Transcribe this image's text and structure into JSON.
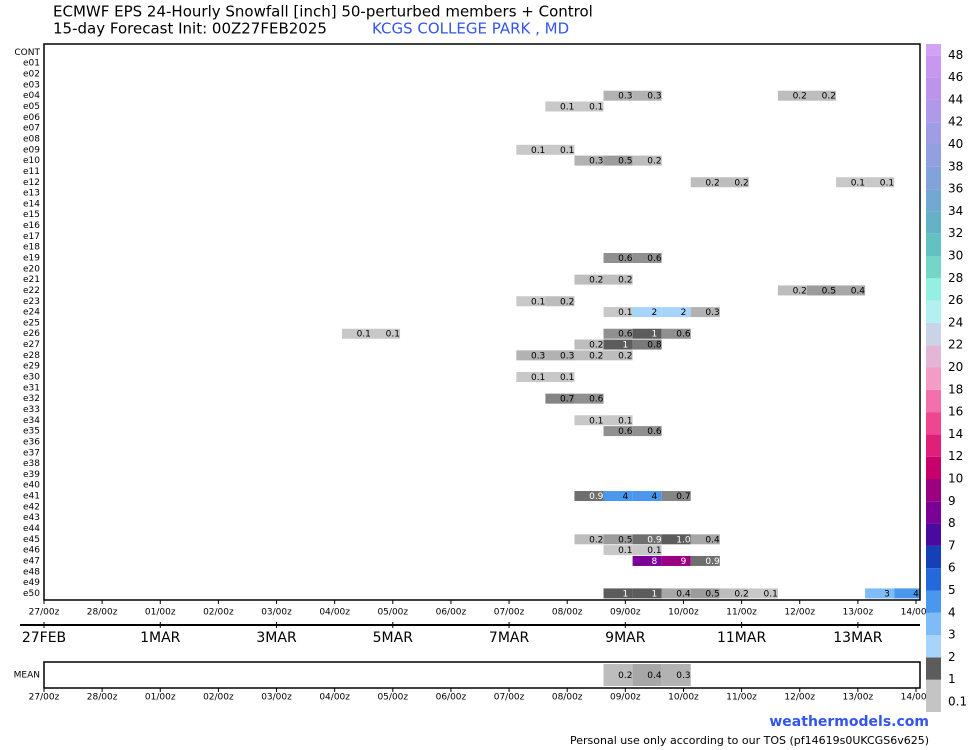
{
  "chart_data": {
    "type": "heatmap",
    "title": "ECMWF EPS 24-Hourly Snowfall [inch]  50-perturbed members + Control",
    "subtitle": "15-day Forecast Init: 00Z27FEB2025",
    "location": "KCGS COLLEGE PARK   , MD",
    "source": "weathermodels.com",
    "footnote": "Personal use only according to our TOS (pf14619s0UKCGS6v625)",
    "mean_label": "MEAN",
    "xlim": [
      0,
      360
    ],
    "xticks": [
      {
        "value": 0,
        "label": "27/00z"
      },
      {
        "value": 24,
        "label": "28/00z"
      },
      {
        "value": 48,
        "label": "01/00z"
      },
      {
        "value": 72,
        "label": "02/00z"
      },
      {
        "value": 96,
        "label": "03/00z"
      },
      {
        "value": 120,
        "label": "04/00z"
      },
      {
        "value": 144,
        "label": "05/00z"
      },
      {
        "value": 168,
        "label": "06/00z"
      },
      {
        "value": 192,
        "label": "07/00z"
      },
      {
        "value": 216,
        "label": "08/00z"
      },
      {
        "value": 240,
        "label": "09/00z"
      },
      {
        "value": 264,
        "label": "10/00z"
      },
      {
        "value": 288,
        "label": "11/00z"
      },
      {
        "value": 312,
        "label": "12/00z"
      },
      {
        "value": 336,
        "label": "13/00z"
      },
      {
        "value": 360,
        "label": "14/00z"
      }
    ],
    "date_labels": [
      {
        "value": 0,
        "label": "27FEB"
      },
      {
        "value": 48,
        "label": "1MAR"
      },
      {
        "value": 96,
        "label": "3MAR"
      },
      {
        "value": 144,
        "label": "5MAR"
      },
      {
        "value": 192,
        "label": "7MAR"
      },
      {
        "value": 240,
        "label": "9MAR"
      },
      {
        "value": 288,
        "label": "11MAR"
      },
      {
        "value": 336,
        "label": "13MAR"
      }
    ],
    "colorscale": [
      {
        "value": 0.1,
        "color": "#c4c4c4"
      },
      {
        "value": 1,
        "color": "#5c5c5c"
      },
      {
        "value": 2,
        "color": "#a6d4fa"
      },
      {
        "value": 3,
        "color": "#7fbcf7"
      },
      {
        "value": 4,
        "color": "#4a98ee"
      },
      {
        "value": 5,
        "color": "#2468dc"
      },
      {
        "value": 6,
        "color": "#1440b8"
      },
      {
        "value": 7,
        "color": "#4a0aa0"
      },
      {
        "value": 8,
        "color": "#7a0096"
      },
      {
        "value": 9,
        "color": "#9a0080"
      },
      {
        "value": 10,
        "color": "#c8006c"
      },
      {
        "value": 12,
        "color": "#e02078"
      },
      {
        "value": 14,
        "color": "#ee4690"
      },
      {
        "value": 16,
        "color": "#f270ac"
      },
      {
        "value": 18,
        "color": "#f49cc6"
      },
      {
        "value": 20,
        "color": "#e4b6d6"
      },
      {
        "value": 22,
        "color": "#cad4e8"
      },
      {
        "value": 24,
        "color": "#b4f0f2"
      },
      {
        "value": 26,
        "color": "#94f0e2"
      },
      {
        "value": 28,
        "color": "#74d6c8"
      },
      {
        "value": 30,
        "color": "#62c2c2"
      },
      {
        "value": 32,
        "color": "#64b2c8"
      },
      {
        "value": 34,
        "color": "#72a8d2"
      },
      {
        "value": 36,
        "color": "#82a2da"
      },
      {
        "value": 38,
        "color": "#90a0e0"
      },
      {
        "value": 40,
        "color": "#a09ce6"
      },
      {
        "value": 42,
        "color": "#b098ea"
      },
      {
        "value": 44,
        "color": "#bc94ec"
      },
      {
        "value": 46,
        "color": "#c898f0"
      },
      {
        "value": 48,
        "color": "#d2a2f6"
      }
    ],
    "rows": [
      {
        "name": "CONT",
        "cells": []
      },
      {
        "name": "e01",
        "cells": []
      },
      {
        "name": "e02",
        "cells": []
      },
      {
        "name": "e03",
        "cells": []
      },
      {
        "name": "e04",
        "cells": [
          {
            "t": 240,
            "v": 0.3
          },
          {
            "t": 252,
            "v": 0.3
          },
          {
            "t": 312,
            "v": 0.2
          },
          {
            "t": 324,
            "v": 0.2
          }
        ]
      },
      {
        "name": "e05",
        "cells": [
          {
            "t": 216,
            "v": 0.1
          },
          {
            "t": 228,
            "v": 0.1
          }
        ]
      },
      {
        "name": "e06",
        "cells": []
      },
      {
        "name": "e07",
        "cells": []
      },
      {
        "name": "e08",
        "cells": []
      },
      {
        "name": "e09",
        "cells": [
          {
            "t": 204,
            "v": 0.1
          },
          {
            "t": 216,
            "v": 0.1
          }
        ]
      },
      {
        "name": "e10",
        "cells": [
          {
            "t": 228,
            "v": 0.3
          },
          {
            "t": 240,
            "v": 0.5
          },
          {
            "t": 252,
            "v": 0.2
          }
        ]
      },
      {
        "name": "e11",
        "cells": []
      },
      {
        "name": "e12",
        "cells": [
          {
            "t": 276,
            "v": 0.2
          },
          {
            "t": 288,
            "v": 0.2
          },
          {
            "t": 336,
            "v": 0.1
          },
          {
            "t": 348,
            "v": 0.1
          }
        ]
      },
      {
        "name": "e13",
        "cells": []
      },
      {
        "name": "e14",
        "cells": []
      },
      {
        "name": "e15",
        "cells": []
      },
      {
        "name": "e16",
        "cells": []
      },
      {
        "name": "e17",
        "cells": []
      },
      {
        "name": "e18",
        "cells": []
      },
      {
        "name": "e19",
        "cells": [
          {
            "t": 240,
            "v": 0.6
          },
          {
            "t": 252,
            "v": 0.6
          }
        ]
      },
      {
        "name": "e20",
        "cells": []
      },
      {
        "name": "e21",
        "cells": [
          {
            "t": 228,
            "v": 0.2
          },
          {
            "t": 240,
            "v": 0.2
          }
        ]
      },
      {
        "name": "e22",
        "cells": [
          {
            "t": 312,
            "v": 0.2
          },
          {
            "t": 324,
            "v": 0.5
          },
          {
            "t": 336,
            "v": 0.4
          }
        ]
      },
      {
        "name": "e23",
        "cells": [
          {
            "t": 204,
            "v": 0.1
          },
          {
            "t": 216,
            "v": 0.2
          }
        ]
      },
      {
        "name": "e24",
        "cells": [
          {
            "t": 240,
            "v": 0.1
          },
          {
            "t": 252,
            "v": 2
          },
          {
            "t": 264,
            "v": 2
          },
          {
            "t": 276,
            "v": 0.3
          }
        ]
      },
      {
        "name": "e25",
        "cells": []
      },
      {
        "name": "e26",
        "cells": [
          {
            "t": 132,
            "v": 0.1
          },
          {
            "t": 144,
            "v": 0.1
          },
          {
            "t": 240,
            "v": 0.6
          },
          {
            "t": 252,
            "v": 1
          },
          {
            "t": 264,
            "v": 0.6
          }
        ]
      },
      {
        "name": "e27",
        "cells": [
          {
            "t": 228,
            "v": 0.2
          },
          {
            "t": 240,
            "v": 1
          },
          {
            "t": 252,
            "v": 0.8
          }
        ]
      },
      {
        "name": "e28",
        "cells": [
          {
            "t": 204,
            "v": 0.3
          },
          {
            "t": 216,
            "v": 0.3
          },
          {
            "t": 228,
            "v": 0.2
          },
          {
            "t": 240,
            "v": 0.2
          }
        ]
      },
      {
        "name": "e29",
        "cells": []
      },
      {
        "name": "e30",
        "cells": [
          {
            "t": 204,
            "v": 0.1
          },
          {
            "t": 216,
            "v": 0.1
          }
        ]
      },
      {
        "name": "e31",
        "cells": []
      },
      {
        "name": "e32",
        "cells": [
          {
            "t": 216,
            "v": 0.7
          },
          {
            "t": 228,
            "v": 0.6
          }
        ]
      },
      {
        "name": "e33",
        "cells": []
      },
      {
        "name": "e34",
        "cells": [
          {
            "t": 228,
            "v": 0.1
          },
          {
            "t": 240,
            "v": 0.1
          }
        ]
      },
      {
        "name": "e35",
        "cells": [
          {
            "t": 240,
            "v": 0.6
          },
          {
            "t": 252,
            "v": 0.6
          }
        ]
      },
      {
        "name": "e36",
        "cells": []
      },
      {
        "name": "e37",
        "cells": []
      },
      {
        "name": "e38",
        "cells": []
      },
      {
        "name": "e39",
        "cells": []
      },
      {
        "name": "e40",
        "cells": []
      },
      {
        "name": "e41",
        "cells": [
          {
            "t": 228,
            "v": 0.9
          },
          {
            "t": 240,
            "v": 4
          },
          {
            "t": 252,
            "v": 4
          },
          {
            "t": 264,
            "v": 0.7
          }
        ]
      },
      {
        "name": "e42",
        "cells": []
      },
      {
        "name": "e43",
        "cells": []
      },
      {
        "name": "e44",
        "cells": []
      },
      {
        "name": "e45",
        "cells": [
          {
            "t": 228,
            "v": 0.2
          },
          {
            "t": 240,
            "v": 0.5
          },
          {
            "t": 252,
            "v": 0.9
          },
          {
            "t": 264,
            "v": 1,
            "label": "1.0"
          },
          {
            "t": 276,
            "v": 0.4
          }
        ]
      },
      {
        "name": "e46",
        "cells": [
          {
            "t": 240,
            "v": 0.1
          },
          {
            "t": 252,
            "v": 0.1
          }
        ]
      },
      {
        "name": "e47",
        "cells": [
          {
            "t": 252,
            "v": 8
          },
          {
            "t": 264,
            "v": 9
          },
          {
            "t": 276,
            "v": 0.9
          }
        ]
      },
      {
        "name": "e48",
        "cells": []
      },
      {
        "name": "e49",
        "cells": []
      },
      {
        "name": "e50",
        "cells": [
          {
            "t": 240,
            "v": 1
          },
          {
            "t": 252,
            "v": 1
          },
          {
            "t": 264,
            "v": 0.4
          },
          {
            "t": 276,
            "v": 0.5
          },
          {
            "t": 288,
            "v": 0.2
          },
          {
            "t": 300,
            "v": 0.1
          },
          {
            "t": 348,
            "v": 3
          },
          {
            "t": 360,
            "v": 4
          }
        ]
      }
    ],
    "mean": [
      {
        "t": 240,
        "v": 0.2
      },
      {
        "t": 252,
        "v": 0.4
      },
      {
        "t": 264,
        "v": 0.3
      }
    ]
  }
}
